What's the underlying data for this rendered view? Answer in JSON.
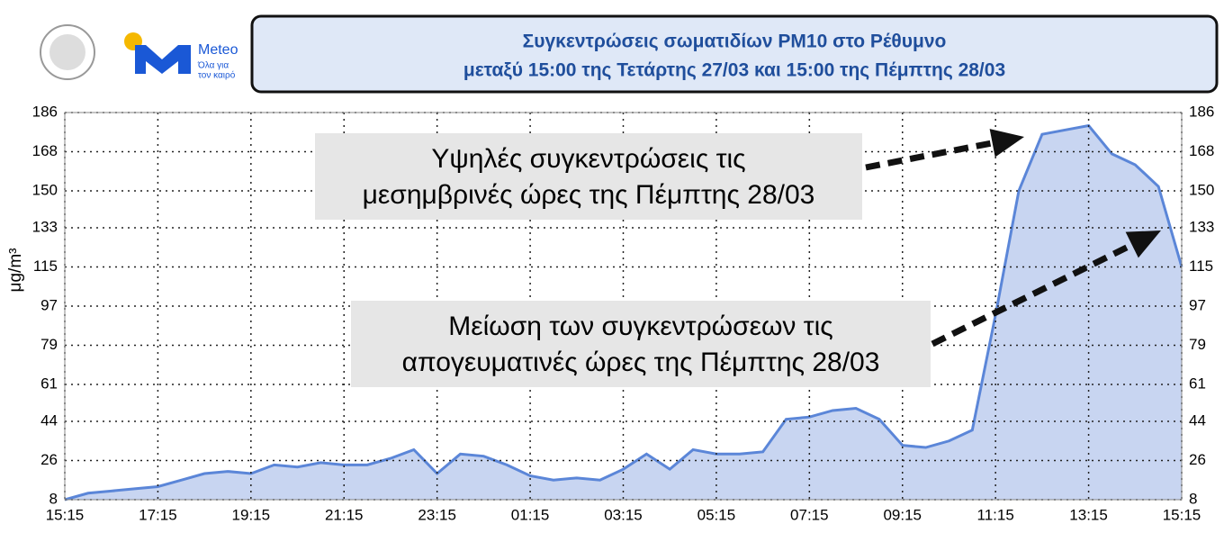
{
  "chart_data": {
    "type": "area",
    "title": "Συγκεντρώσεις σωματιδίων PM10 στο Ρέθυμνο",
    "subtitle": "μεταξύ 15:00 της Τετάρτης 27/03 και 15:00 της Πέμπτης 28/03",
    "y_label": "μg/m³",
    "logo_text": [
      "Meteo",
      "Όλα για",
      "τον καιρό"
    ],
    "annotations": [
      [
        "Υψηλές συγκεντρώσεις τις",
        "μεσημβρινές ώρες της Πέμπτης 28/03"
      ],
      [
        "Μείωση των συγκεντρώσεων τις",
        "απογευματινές ώρες της Πέμπτης 28/03"
      ]
    ],
    "categories": [
      "15:15",
      null,
      null,
      null,
      "17:15",
      null,
      null,
      null,
      "19:15",
      null,
      null,
      null,
      "21:15",
      null,
      null,
      null,
      "23:15",
      null,
      null,
      null,
      "01:15",
      null,
      null,
      null,
      "03:15",
      null,
      null,
      null,
      "05:15",
      null,
      null,
      null,
      "07:15",
      null,
      null,
      null,
      "09:15",
      null,
      null,
      null,
      "11:15",
      null,
      null,
      null,
      "13:15",
      null,
      null,
      null,
      "15:15"
    ],
    "values": [
      8,
      11,
      12,
      13,
      14,
      17,
      20,
      21,
      20,
      24,
      23,
      25,
      24,
      24,
      27,
      31,
      20,
      29,
      28,
      24,
      19,
      17,
      18,
      17,
      22,
      29,
      22,
      31,
      29,
      29,
      30,
      45,
      46,
      49,
      50,
      45,
      33,
      32,
      35,
      40,
      93,
      150,
      176,
      178,
      180,
      167,
      162,
      152,
      115
    ],
    "color": "#5b86d8",
    "fill": "#c8d5f1",
    "ylim": [
      8,
      186
    ],
    "yticks": [
      8,
      26,
      44,
      61,
      79,
      97,
      115,
      133,
      150,
      168,
      186
    ],
    "grid": true
  }
}
